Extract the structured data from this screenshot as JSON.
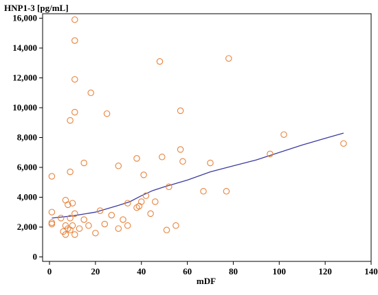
{
  "chart_data": {
    "type": "scatter",
    "ylabel": "HNP1-3 [pg/mL]",
    "xlabel": "mDF",
    "xlim": [
      -3,
      140
    ],
    "ylim": [
      -300,
      16300
    ],
    "x_ticks": [
      0,
      20,
      40,
      60,
      80,
      100,
      120,
      140
    ],
    "y_ticks": [
      0,
      2000,
      4000,
      6000,
      8000,
      10000,
      12000,
      14000,
      16000
    ],
    "y_tick_labels": [
      "0",
      "2,000",
      "4,000",
      "6,000",
      "8,000",
      "10,000",
      "12,000",
      "14,000",
      "16,000"
    ],
    "grid": false,
    "marker": "open-circle",
    "marker_color": "#e8823a",
    "trend_color": "#3b3aa0",
    "points": [
      [
        1,
        5400
      ],
      [
        1,
        3000
      ],
      [
        1,
        2300
      ],
      [
        1,
        2200
      ],
      [
        5,
        2600
      ],
      [
        6,
        1700
      ],
      [
        7,
        3800
      ],
      [
        7,
        1500
      ],
      [
        7,
        2100
      ],
      [
        8,
        1900
      ],
      [
        8,
        3500
      ],
      [
        9,
        5700
      ],
      [
        9,
        9150
      ],
      [
        9,
        2600
      ],
      [
        9,
        1800
      ],
      [
        10,
        3600
      ],
      [
        10,
        2100
      ],
      [
        11,
        15900
      ],
      [
        11,
        14500
      ],
      [
        11,
        11900
      ],
      [
        11,
        9700
      ],
      [
        11,
        2900
      ],
      [
        11,
        1500
      ],
      [
        13,
        1900
      ],
      [
        15,
        6300
      ],
      [
        15,
        2500
      ],
      [
        17,
        2100
      ],
      [
        18,
        11000
      ],
      [
        20,
        1600
      ],
      [
        22,
        3100
      ],
      [
        24,
        2200
      ],
      [
        25,
        9600
      ],
      [
        27,
        2800
      ],
      [
        30,
        6100
      ],
      [
        30,
        1900
      ],
      [
        32,
        2500
      ],
      [
        34,
        3600
      ],
      [
        34,
        2100
      ],
      [
        38,
        6600
      ],
      [
        38,
        3300
      ],
      [
        39,
        3400
      ],
      [
        40,
        3700
      ],
      [
        41,
        5500
      ],
      [
        42,
        4100
      ],
      [
        44,
        2900
      ],
      [
        46,
        3700
      ],
      [
        48,
        13100
      ],
      [
        49,
        6700
      ],
      [
        51,
        1800
      ],
      [
        52,
        4700
      ],
      [
        55,
        2100
      ],
      [
        57,
        7200
      ],
      [
        57,
        9800
      ],
      [
        58,
        6400
      ],
      [
        67,
        4400
      ],
      [
        70,
        6300
      ],
      [
        77,
        4400
      ],
      [
        78,
        13300
      ],
      [
        96,
        6900
      ],
      [
        102,
        8200
      ],
      [
        128,
        7600
      ]
    ],
    "trend_line": [
      [
        1,
        2600
      ],
      [
        10,
        2750
      ],
      [
        20,
        3000
      ],
      [
        30,
        3450
      ],
      [
        35,
        3700
      ],
      [
        40,
        4100
      ],
      [
        45,
        4450
      ],
      [
        50,
        4700
      ],
      [
        60,
        5150
      ],
      [
        70,
        5700
      ],
      [
        80,
        6100
      ],
      [
        90,
        6500
      ],
      [
        100,
        7000
      ],
      [
        110,
        7500
      ],
      [
        120,
        7950
      ],
      [
        128,
        8300
      ]
    ]
  }
}
